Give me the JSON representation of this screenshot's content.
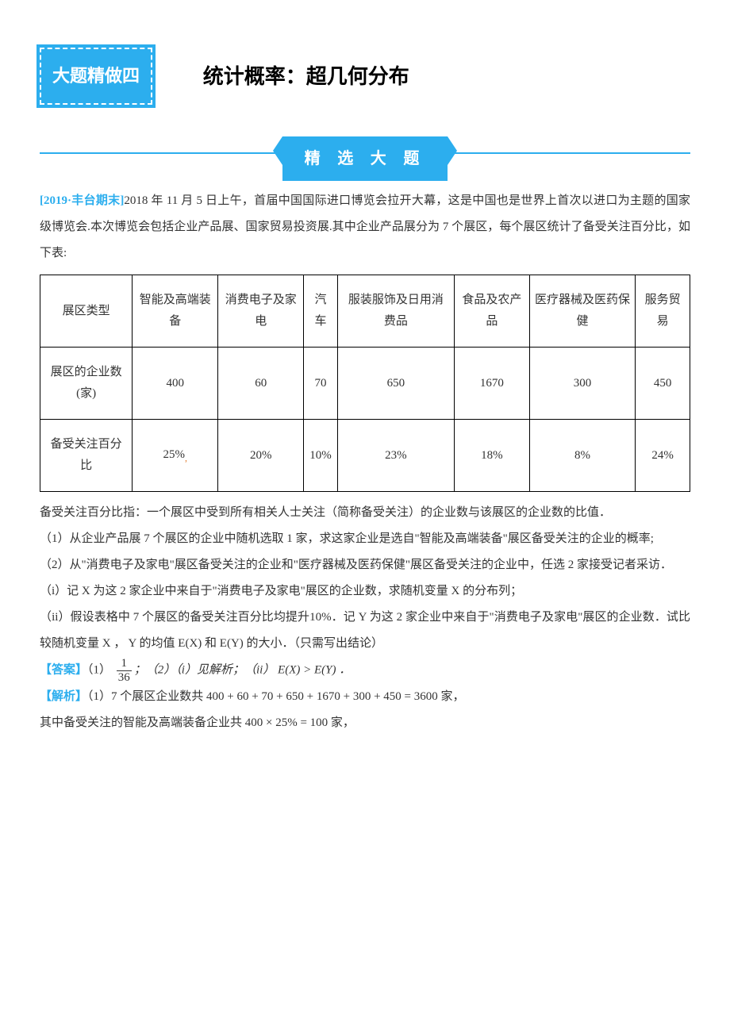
{
  "header": {
    "badge": "大题精做四",
    "title": "统计概率：超几何分布"
  },
  "section_label": "精 选 大 题",
  "source_tag": "[2019·丰台期末]",
  "intro_paragraph": "2018 年 11 月 5 日上午，首届中国国际进口博览会拉开大幕，这是中国也是世界上首次以进口为主题的国家级博览会.本次博览会包括企业产品展、国家贸易投资展.其中企业产品展分为 7 个展区，每个展区统计了备受关注百分比，如下表:",
  "table": {
    "columns": [
      "展区类型",
      "智能及高端装备",
      "消费电子及家电",
      "汽车",
      "服装服饰及日用消费品",
      "食品及农产品",
      "医疗器械及医药保健",
      "服务贸易"
    ],
    "rows": [
      {
        "label": "展区的企业数(家)",
        "values": [
          "400",
          "60",
          "70",
          "650",
          "1670",
          "300",
          "450"
        ]
      },
      {
        "label": "备受关注百分比",
        "values": [
          "25%",
          "20%",
          "10%",
          "23%",
          "18%",
          "8%",
          "24%"
        ]
      }
    ],
    "border_color": "#000000",
    "cell_padding": "18px 6px",
    "text_align": "center"
  },
  "note_paragraph": "备受关注百分比指：一个展区中受到所有相关人士关注（简称备受关注）的企业数与该展区的企业数的比值．",
  "questions": {
    "q1": "（1）从企业产品展 7 个展区的企业中随机选取 1 家，求这家企业是选自\"智能及高端装备\"展区备受关注的企业的概率;",
    "q2_intro": "（2）从\"消费电子及家电\"展区备受关注的企业和\"医疗器械及医药保健\"展区备受关注的企业中，任选 2 家接受记者采访．",
    "q2_i": "（i）记 X 为这 2 家企业中来自于\"消费电子及家电\"展区的企业数，求随机变量 X 的分布列；",
    "q2_ii": "（ii）假设表格中 7 个展区的备受关注百分比均提升10%．记 Y 为这 2 家企业中来自于\"消费电子及家电\"展区的企业数．试比较随机变量 X ， Y 的均值 E(X) 和 E(Y) 的大小．（只需写出结论）"
  },
  "answer": {
    "label": "【答案】",
    "part1_prefix": "（1）",
    "frac_num": "1",
    "frac_den": "36",
    "rest": "；（2）（i）见解析；（ii） E(X) > E(Y) ．"
  },
  "analysis": {
    "label": "【解析】",
    "line1": "（1）7 个展区企业数共 400 + 60 + 70 + 650 + 1670 + 300 + 450 = 3600 家，",
    "line2": "其中备受关注的智能及高端装备企业共 400 × 25% = 100 家，"
  },
  "colors": {
    "brand": "#2caeee",
    "text": "#333333",
    "orange_accent": "#e07b2c",
    "background": "#ffffff"
  }
}
